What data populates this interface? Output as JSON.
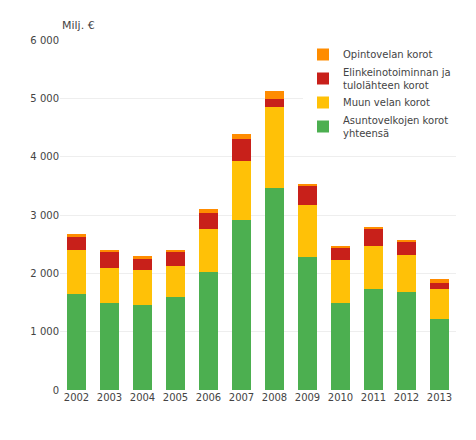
{
  "chart_data": {
    "type": "bar",
    "stacked": true,
    "ylabel": "Milj. €",
    "categories": [
      "2002",
      "2003",
      "2004",
      "2005",
      "2006",
      "2007",
      "2008",
      "2009",
      "2010",
      "2011",
      "2012",
      "2013"
    ],
    "series": [
      {
        "name": "Asuntovelkojen korot\nyhteensä",
        "color": "#4CAF50",
        "values": [
          1650,
          1490,
          1460,
          1600,
          2020,
          2920,
          3460,
          2280,
          1490,
          1740,
          1680,
          1210
        ]
      },
      {
        "name": "Muun velan korot",
        "color": "#FFC107",
        "values": [
          750,
          600,
          590,
          530,
          740,
          1000,
          1400,
          900,
          740,
          730,
          640,
          530
        ]
      },
      {
        "name": "Elinkeinotoiminnan ja\ntulolähteen korot",
        "color": "#C8201A",
        "values": [
          230,
          270,
          200,
          230,
          280,
          390,
          130,
          330,
          210,
          300,
          230,
          100
        ]
      },
      {
        "name": "Opintovelan korot",
        "color": "#FF8C00",
        "values": [
          50,
          40,
          40,
          40,
          60,
          80,
          130,
          30,
          20,
          10,
          25,
          55
        ]
      }
    ],
    "ylim": [
      0,
      6000
    ],
    "yticks": [
      0,
      {
        "value": 1000,
        "label": "1 000"
      },
      {
        "value": 2000,
        "label": "2 000"
      },
      {
        "value": 3000,
        "label": "3 000"
      },
      {
        "value": 4000,
        "label": "4 000"
      },
      {
        "value": 5000,
        "label": "5 000"
      },
      {
        "value": 6000,
        "label": "6 000"
      }
    ],
    "grid": true,
    "legend": "upper right"
  }
}
